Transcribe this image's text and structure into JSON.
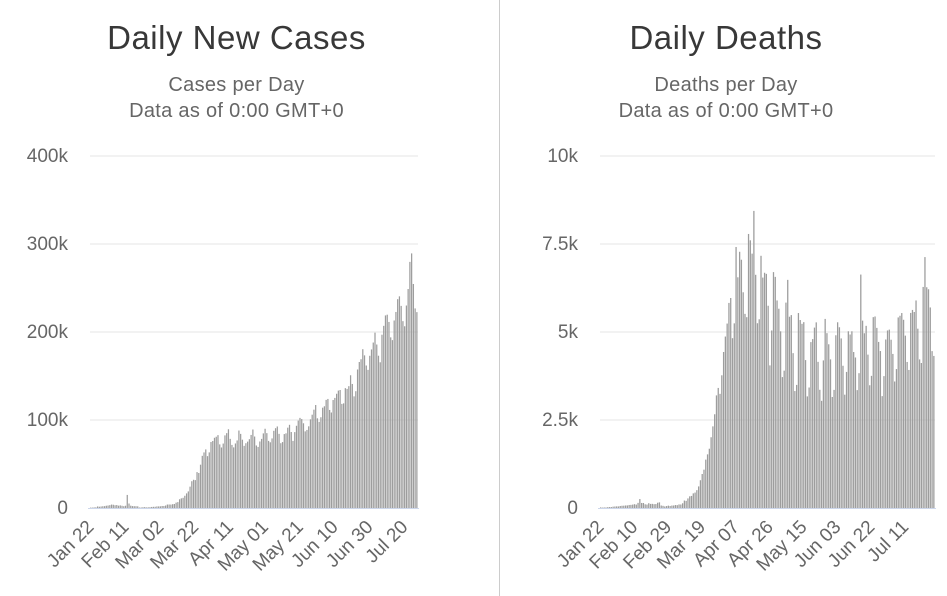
{
  "chart_data": [
    {
      "type": "bar",
      "name": "daily-new-cases",
      "title": "Daily New Cases",
      "subtitle_line1": "Cases per Day",
      "subtitle_line2": "Data as of 0:00 GMT+0",
      "x_unit": "day",
      "x_start_label": "Jan 22",
      "xtick_interval": 20,
      "xtick_labels": [
        "Jan 22",
        "Feb 11",
        "Mar 02",
        "Mar 22",
        "Apr 11",
        "May 01",
        "May 21",
        "Jun 10",
        "Jun 30",
        "Jul 20"
      ],
      "ylim": [
        0,
        400000
      ],
      "yticks": [
        {
          "value": 0,
          "label": "0"
        },
        {
          "value": 100000,
          "label": "100k"
        },
        {
          "value": 200000,
          "label": "200k"
        },
        {
          "value": 300000,
          "label": "300k"
        },
        {
          "value": 400000,
          "label": "400k"
        }
      ],
      "grid": "horizontal",
      "legend": "none",
      "values": [
        259,
        457,
        688,
        776,
        1776,
        1460,
        1739,
        1984,
        2101,
        2590,
        2827,
        3233,
        3892,
        3697,
        3151,
        3387,
        2653,
        2970,
        2534,
        2023,
        2560,
        14851,
        5089,
        2641,
        2162,
        2057,
        1998,
        1872,
        542,
        607,
        888,
        1023,
        650,
        810,
        922,
        1190,
        1364,
        1393,
        1791,
        1806,
        1922,
        2294,
        2291,
        2827,
        3931,
        3986,
        3921,
        4290,
        4560,
        6098,
        6703,
        9910,
        10961,
        11594,
        13903,
        16605,
        18854,
        24278,
        30432,
        32087,
        31690,
        40788,
        39800,
        49219,
        59280,
        63143,
        66554,
        58925,
        63206,
        74993,
        76141,
        79818,
        81005,
        82796,
        72296,
        68787,
        73224,
        82520,
        85067,
        89473,
        78559,
        71688,
        68894,
        73327,
        76766,
        88047,
        84219,
        77627,
        70629,
        73609,
        75439,
        78190,
        83013,
        89181,
        81230,
        71055,
        69412,
        75589,
        78531,
        84771,
        90058,
        85070,
        76276,
        74672,
        79064,
        87729,
        90687,
        92645,
        84245,
        73639,
        74939,
        84019,
        84856,
        91283,
        94537,
        86351,
        76226,
        86238,
        93435,
        99355,
        102399,
        101072,
        96274,
        87087,
        88689,
        92814,
        100778,
        106037,
        111742,
        117024,
        101930,
        97923,
        103128,
        114013,
        115586,
        122847,
        123930,
        111413,
        108512,
        122706,
        125106,
        129833,
        133442,
        134086,
        118297,
        118896,
        136189,
        135339,
        138449,
        150825,
        140948,
        126869,
        132727,
        157385,
        165920,
        169048,
        180460,
        173444,
        161940,
        156979,
        172964,
        180178,
        188027,
        199233,
        185779,
        173070,
        165575,
        196930,
        207003,
        218835,
        219673,
        211416,
        193907,
        190766,
        213082,
        222774,
        237290,
        240538,
        229683,
        212326,
        206524,
        230091,
        248817,
        279681,
        289321,
        254557,
        226783,
        222582
      ]
    },
    {
      "type": "bar",
      "name": "daily-deaths",
      "title": "Daily Deaths",
      "subtitle_line1": "Deaths per Day",
      "subtitle_line2": "Data as of 0:00 GMT+0",
      "x_unit": "day",
      "x_start_label": "Jan 22",
      "xtick_interval": 19,
      "xtick_labels": [
        "Jan 22",
        "Feb 10",
        "Feb 29",
        "Mar 19",
        "Apr 07",
        "Apr 26",
        "May 15",
        "Jun 03",
        "Jun 22",
        "Jul 11"
      ],
      "ylim": [
        0,
        10000
      ],
      "yticks": [
        {
          "value": 0,
          "label": "0"
        },
        {
          "value": 2500,
          "label": "2.5k"
        },
        {
          "value": 5000,
          "label": "5k"
        },
        {
          "value": 7500,
          "label": "7.5k"
        },
        {
          "value": 10000,
          "label": "10k"
        }
      ],
      "grid": "horizontal",
      "legend": "none",
      "values": [
        17,
        8,
        16,
        15,
        24,
        26,
        26,
        38,
        43,
        46,
        45,
        58,
        64,
        66,
        72,
        73,
        86,
        89,
        97,
        108,
        97,
        146,
        254,
        143,
        142,
        105,
        98,
        136,
        116,
        118,
        109,
        112,
        150,
        160,
        71,
        62,
        44,
        55,
        67,
        58,
        70,
        72,
        84,
        80,
        101,
        99,
        134,
        212,
        203,
        272,
        332,
        343,
        416,
        438,
        507,
        613,
        789,
        966,
        1089,
        1375,
        1524,
        1684,
        2010,
        2319,
        2663,
        3199,
        3411,
        3243,
        3770,
        4432,
        4871,
        5240,
        5826,
        5966,
        4824,
        5246,
        7415,
        6554,
        7279,
        7053,
        6128,
        5515,
        5421,
        7785,
        7605,
        7226,
        8440,
        6625,
        5249,
        5361,
        7165,
        6546,
        6683,
        6652,
        5746,
        4051,
        5044,
        6701,
        6566,
        5896,
        5661,
        5020,
        3719,
        3902,
        5835,
        6481,
        5434,
        5481,
        4399,
        3322,
        3497,
        5539,
        5340,
        5232,
        5280,
        4202,
        3171,
        3423,
        4713,
        4798,
        5125,
        5274,
        4152,
        3358,
        3045,
        4193,
        5372,
        4967,
        4651,
        4222,
        3154,
        3355,
        4907,
        5276,
        5135,
        4818,
        4041,
        3220,
        3866,
        5021,
        4929,
        5021,
        4431,
        4276,
        3349,
        3830,
        6632,
        5323,
        4964,
        5175,
        4357,
        3487,
        3754,
        5422,
        5441,
        5117,
        4718,
        4459,
        3178,
        3747,
        4787,
        5044,
        5068,
        4780,
        4377,
        3594,
        3947,
        5414,
        5461,
        5539,
        5347,
        4897,
        4149,
        3922,
        5542,
        5627,
        5568,
        5896,
        5094,
        4221,
        4119,
        6280,
        7128,
        6271,
        6214,
        5697,
        4457,
        4320
      ]
    }
  ],
  "colors": {
    "bar": "#9d9d9d",
    "gridline": "#e6e6e6",
    "axis_line": "#ccd6eb",
    "title": "#383838",
    "subtitle": "#666666",
    "axis_label": "#666666",
    "divider": "#cccccc",
    "background": "#ffffff"
  }
}
